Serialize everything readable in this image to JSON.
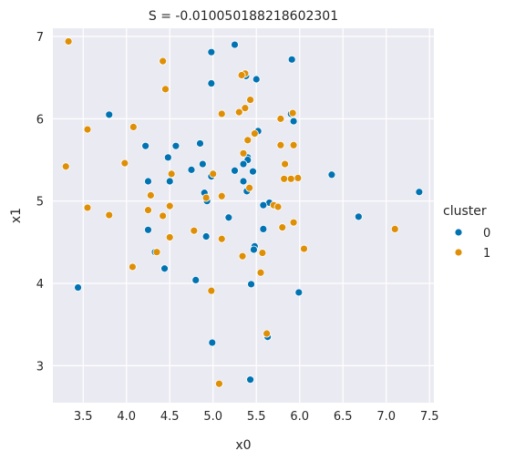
{
  "chart_data": {
    "type": "scatter",
    "title": "S = -0.010050188218602301",
    "xlabel": "x0",
    "ylabel": "x1",
    "xlim": [
      3.15,
      7.55
    ],
    "ylim": [
      2.55,
      7.1
    ],
    "xticks": [
      "3.5",
      "4.0",
      "4.5",
      "5.0",
      "5.5",
      "6.0",
      "6.5",
      "7.0",
      "7.5"
    ],
    "yticks": [
      "3",
      "4",
      "5",
      "6",
      "7"
    ],
    "grid": true,
    "legend": {
      "title": "cluster",
      "placement": "right"
    },
    "series": [
      {
        "name": "0",
        "color": "#0173b2",
        "points": [
          [
            5.25,
            6.9
          ],
          [
            4.98,
            6.81
          ],
          [
            5.91,
            6.72
          ],
          [
            5.38,
            6.52
          ],
          [
            5.5,
            6.48
          ],
          [
            4.98,
            6.43
          ],
          [
            3.8,
            6.05
          ],
          [
            5.9,
            6.06
          ],
          [
            5.93,
            5.97
          ],
          [
            5.52,
            5.85
          ],
          [
            4.22,
            5.67
          ],
          [
            4.57,
            5.67
          ],
          [
            4.85,
            5.7
          ],
          [
            4.48,
            5.53
          ],
          [
            5.4,
            5.53
          ],
          [
            5.4,
            5.5
          ],
          [
            5.35,
            5.45
          ],
          [
            4.88,
            5.45
          ],
          [
            4.75,
            5.38
          ],
          [
            5.46,
            5.36
          ],
          [
            5.25,
            5.37
          ],
          [
            6.37,
            5.32
          ],
          [
            4.98,
            5.3
          ],
          [
            4.25,
            5.24
          ],
          [
            4.5,
            5.24
          ],
          [
            5.35,
            5.24
          ],
          [
            5.39,
            5.12
          ],
          [
            7.38,
            5.11
          ],
          [
            4.9,
            5.1
          ],
          [
            4.93,
            5.0
          ],
          [
            5.65,
            4.98
          ],
          [
            5.58,
            4.95
          ],
          [
            5.18,
            4.8
          ],
          [
            6.68,
            4.81
          ],
          [
            4.25,
            4.65
          ],
          [
            5.58,
            4.66
          ],
          [
            4.92,
            4.57
          ],
          [
            5.48,
            4.45
          ],
          [
            5.47,
            4.41
          ],
          [
            4.33,
            4.38
          ],
          [
            4.44,
            4.18
          ],
          [
            4.8,
            4.04
          ],
          [
            5.44,
            3.99
          ],
          [
            3.44,
            3.95
          ],
          [
            5.99,
            3.89
          ],
          [
            5.63,
            3.35
          ],
          [
            4.99,
            3.28
          ],
          [
            5.43,
            2.83
          ]
        ]
      },
      {
        "name": "1",
        "color": "#de8f05",
        "points": [
          [
            3.33,
            6.94
          ],
          [
            4.42,
            6.7
          ],
          [
            5.37,
            6.55
          ],
          [
            5.33,
            6.53
          ],
          [
            4.45,
            6.36
          ],
          [
            5.43,
            6.23
          ],
          [
            5.37,
            6.13
          ],
          [
            5.3,
            6.08
          ],
          [
            5.1,
            6.06
          ],
          [
            5.92,
            6.07
          ],
          [
            5.78,
            6.0
          ],
          [
            4.08,
            5.9
          ],
          [
            3.55,
            5.87
          ],
          [
            5.48,
            5.82
          ],
          [
            5.4,
            5.74
          ],
          [
            5.78,
            5.68
          ],
          [
            5.93,
            5.68
          ],
          [
            5.35,
            5.58
          ],
          [
            3.98,
            5.46
          ],
          [
            5.83,
            5.45
          ],
          [
            3.3,
            5.42
          ],
          [
            5.0,
            5.33
          ],
          [
            4.52,
            5.33
          ],
          [
            5.98,
            5.28
          ],
          [
            5.82,
            5.27
          ],
          [
            5.9,
            5.27
          ],
          [
            5.42,
            5.16
          ],
          [
            4.28,
            5.07
          ],
          [
            5.1,
            5.06
          ],
          [
            4.92,
            5.04
          ],
          [
            5.7,
            4.95
          ],
          [
            4.5,
            4.94
          ],
          [
            3.55,
            4.92
          ],
          [
            5.75,
            4.93
          ],
          [
            4.25,
            4.89
          ],
          [
            4.42,
            4.82
          ],
          [
            3.8,
            4.83
          ],
          [
            5.93,
            4.74
          ],
          [
            5.8,
            4.68
          ],
          [
            4.78,
            4.64
          ],
          [
            7.1,
            4.66
          ],
          [
            4.5,
            4.56
          ],
          [
            5.1,
            4.54
          ],
          [
            6.05,
            4.42
          ],
          [
            5.57,
            4.37
          ],
          [
            4.35,
            4.38
          ],
          [
            5.34,
            4.33
          ],
          [
            4.07,
            4.2
          ],
          [
            5.55,
            4.13
          ],
          [
            4.98,
            3.91
          ],
          [
            5.62,
            3.39
          ],
          [
            5.07,
            2.78
          ]
        ]
      }
    ]
  }
}
